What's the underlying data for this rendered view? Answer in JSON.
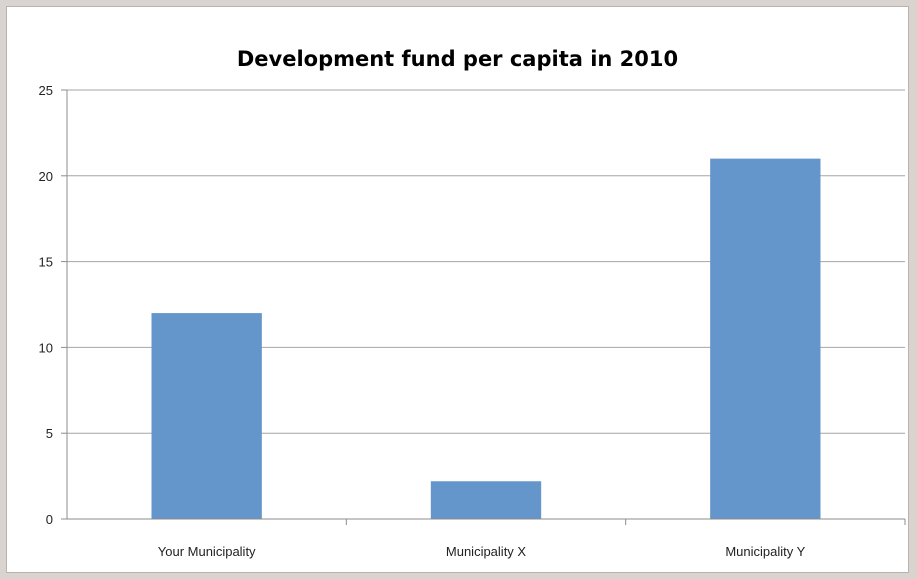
{
  "chart_data": {
    "type": "bar",
    "title": "Development fund per capita in 2010",
    "categories": [
      "Your Municipality",
      "Municipality X",
      "Municipality Y"
    ],
    "values": [
      12,
      2.2,
      21
    ],
    "ylim": [
      0,
      25
    ],
    "yticks": [
      "0",
      "5",
      "10",
      "15",
      "20",
      "25"
    ],
    "xlabel": "",
    "ylabel": "",
    "grid": true,
    "legend": "none",
    "bar_color": "#6495cb",
    "grid_color": "#a6a6a6"
  }
}
